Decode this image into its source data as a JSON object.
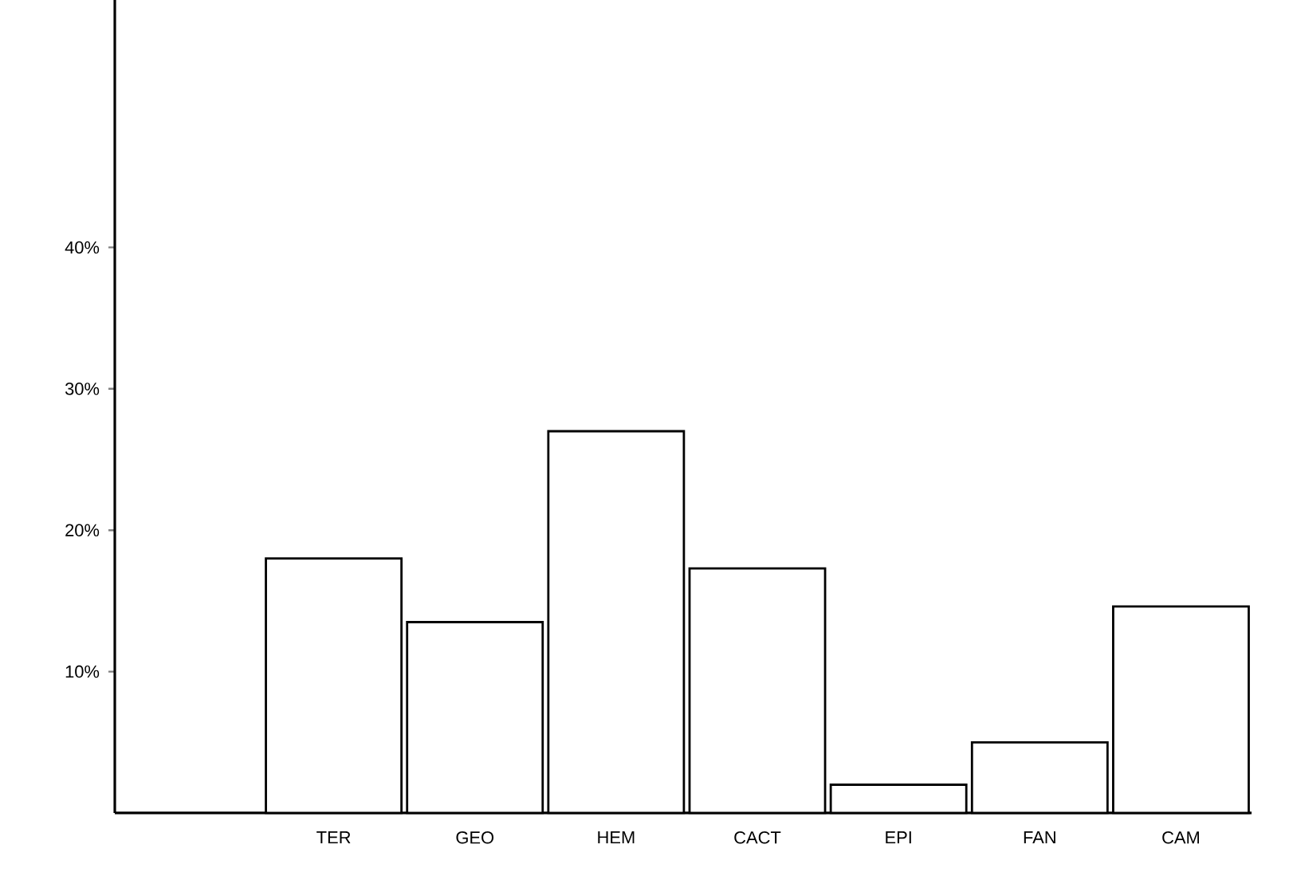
{
  "chart_data": {
    "type": "bar",
    "categories": [
      null,
      "TER",
      "GEO",
      "HEM",
      "CACT",
      "EPI",
      "FAN",
      "CAM"
    ],
    "values": [
      null,
      18,
      13.5,
      27,
      17.3,
      2,
      5,
      14.6
    ],
    "color": "#ffffff",
    "ylim": [
      0,
      57.5
    ],
    "yticks": [
      {
        "value": 10,
        "label": "10%"
      },
      {
        "value": 20,
        "label": "20%"
      },
      {
        "value": 30,
        "label": "30%"
      },
      {
        "value": 40,
        "label": "40%"
      }
    ],
    "grid": false
  }
}
